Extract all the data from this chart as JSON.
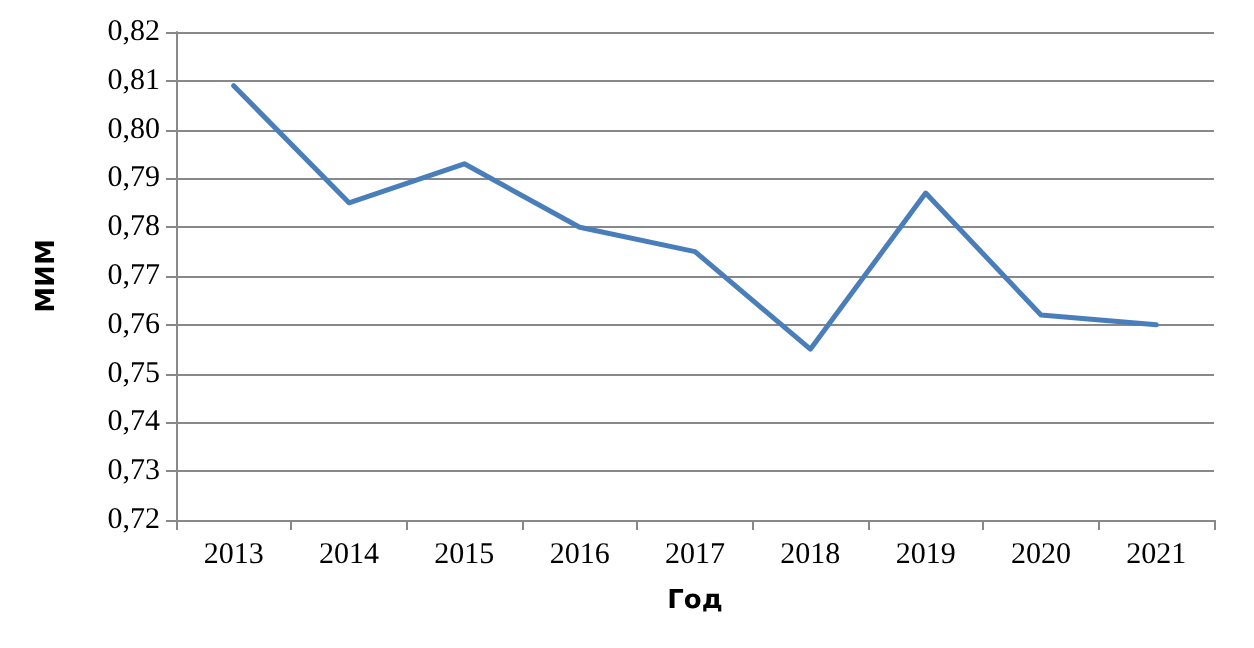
{
  "chart_data": {
    "type": "line",
    "xlabel": "Год",
    "ylabel": "МИМ",
    "categories": [
      "2013",
      "2014",
      "2015",
      "2016",
      "2017",
      "2018",
      "2019",
      "2020",
      "2021"
    ],
    "series": [
      {
        "color": "#4a7ebb",
        "values": [
          0.809,
          0.785,
          0.793,
          0.78,
          0.775,
          0.755,
          0.787,
          0.762,
          0.76
        ]
      }
    ],
    "ylim": [
      0.72,
      0.82
    ],
    "yticks": [
      {
        "value": 0.72,
        "label": "0,72"
      },
      {
        "value": 0.73,
        "label": "0,73"
      },
      {
        "value": 0.74,
        "label": "0,74"
      },
      {
        "value": 0.75,
        "label": "0,75"
      },
      {
        "value": 0.76,
        "label": "0,76"
      },
      {
        "value": 0.77,
        "label": "0,77"
      },
      {
        "value": 0.78,
        "label": "0,78"
      },
      {
        "value": 0.79,
        "label": "0,79"
      },
      {
        "value": 0.8,
        "label": "0,80"
      },
      {
        "value": 0.81,
        "label": "0,81"
      },
      {
        "value": 0.82,
        "label": "0,82"
      }
    ],
    "grid": "y",
    "marker": "none",
    "line_style": "solid"
  }
}
